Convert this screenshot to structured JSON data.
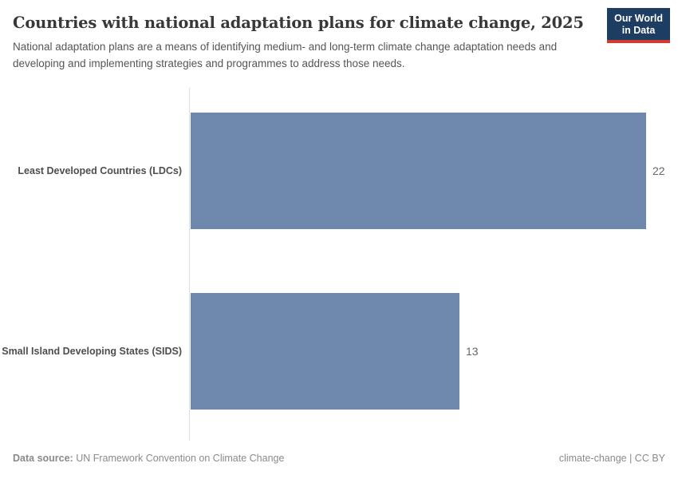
{
  "header": {
    "title": "Countries with national adaptation plans for climate change, 2025",
    "subtitle": "National adaptation plans are a means of identifying medium- and long-term climate change adaptation needs and developing and implementing strategies and programmes to address those needs.",
    "logo": {
      "line1": "Our World",
      "line2": "in Data",
      "bg_color": "#1d3d63",
      "accent_color": "#d13b32"
    }
  },
  "chart_data": {
    "type": "bar",
    "orientation": "horizontal",
    "title": "Countries with national adaptation plans for climate change, 2025",
    "categories": [
      "Least Developed Countries (LDCs)",
      "Small Island Developing States (SIDS)"
    ],
    "values": [
      22,
      13
    ],
    "value_labels": [
      "22",
      "13"
    ],
    "xlabel": "",
    "ylabel": "",
    "xlim": [
      0,
      22
    ],
    "grid": false,
    "legend": "none",
    "bar_color": "#6e87ac",
    "axis_line_color": "#dedede",
    "category_label_color": "#4e4e4e",
    "value_label_color": "#666666"
  },
  "footer": {
    "source_label": "Data source:",
    "source_text": " UN Framework Convention on Climate Change",
    "license_text": "climate-change | CC BY"
  }
}
